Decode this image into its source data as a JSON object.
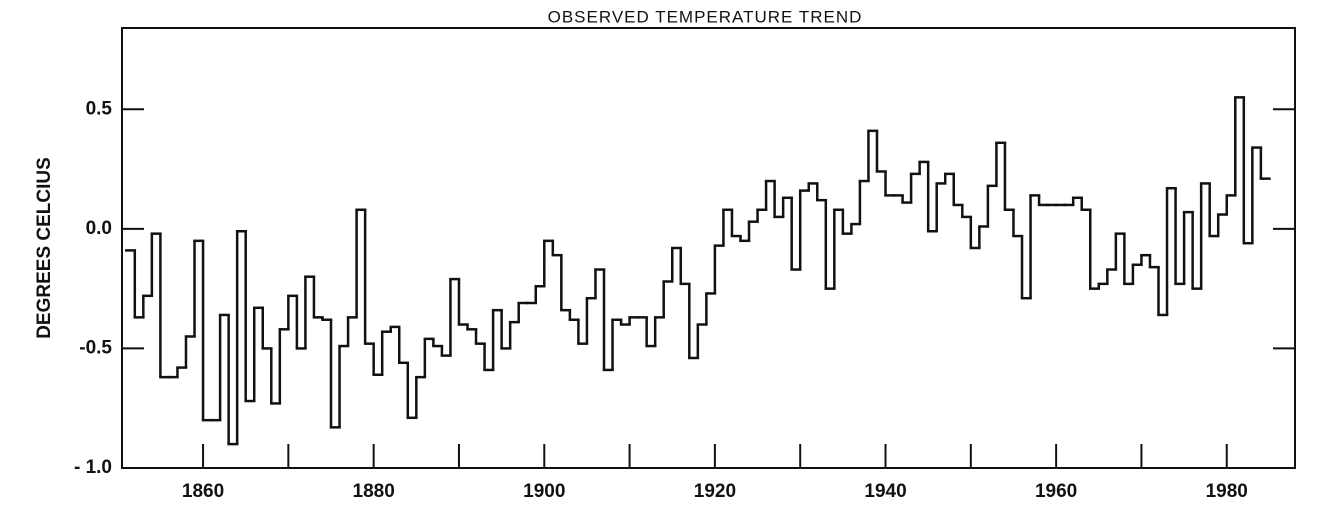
{
  "chart_data": {
    "type": "step",
    "title": "OBSERVED TEMPERATURE TREND",
    "y_label": "DEGREES CELCIUS",
    "x": [
      1851,
      1852,
      1853,
      1854,
      1855,
      1856,
      1857,
      1858,
      1859,
      1860,
      1861,
      1862,
      1863,
      1864,
      1865,
      1866,
      1867,
      1868,
      1869,
      1870,
      1871,
      1872,
      1873,
      1874,
      1875,
      1876,
      1877,
      1878,
      1879,
      1880,
      1881,
      1882,
      1883,
      1884,
      1885,
      1886,
      1887,
      1888,
      1889,
      1890,
      1891,
      1892,
      1893,
      1894,
      1895,
      1896,
      1897,
      1898,
      1899,
      1900,
      1901,
      1902,
      1903,
      1904,
      1905,
      1906,
      1907,
      1908,
      1909,
      1910,
      1911,
      1912,
      1913,
      1914,
      1915,
      1916,
      1917,
      1918,
      1919,
      1920,
      1921,
      1922,
      1923,
      1924,
      1925,
      1926,
      1927,
      1928,
      1929,
      1930,
      1931,
      1932,
      1933,
      1934,
      1935,
      1936,
      1937,
      1938,
      1939,
      1940,
      1941,
      1942,
      1943,
      1944,
      1945,
      1946,
      1947,
      1948,
      1949,
      1950,
      1951,
      1952,
      1953,
      1954,
      1955,
      1956,
      1957,
      1958,
      1959,
      1960,
      1961,
      1962,
      1963,
      1964,
      1965,
      1966,
      1967,
      1968,
      1969,
      1970,
      1971,
      1972,
      1973,
      1974,
      1975,
      1976,
      1977,
      1978,
      1979,
      1980,
      1981,
      1982,
      1983,
      1984
    ],
    "values": [
      -0.09,
      -0.37,
      -0.28,
      -0.02,
      -0.62,
      -0.62,
      -0.58,
      -0.45,
      -0.05,
      -0.8,
      -0.8,
      -0.36,
      -0.9,
      -0.01,
      -0.72,
      -0.33,
      -0.5,
      -0.73,
      -0.42,
      -0.28,
      -0.5,
      -0.2,
      -0.37,
      -0.38,
      -0.83,
      -0.49,
      -0.37,
      0.08,
      -0.48,
      -0.61,
      -0.43,
      -0.41,
      -0.56,
      -0.79,
      -0.62,
      -0.46,
      -0.49,
      -0.53,
      -0.21,
      -0.4,
      -0.42,
      -0.48,
      -0.59,
      -0.34,
      -0.5,
      -0.39,
      -0.31,
      -0.31,
      -0.24,
      -0.05,
      -0.11,
      -0.34,
      -0.38,
      -0.48,
      -0.29,
      -0.17,
      -0.59,
      -0.38,
      -0.4,
      -0.37,
      -0.37,
      -0.49,
      -0.37,
      -0.22,
      -0.08,
      -0.23,
      -0.54,
      -0.4,
      -0.27,
      -0.07,
      0.08,
      -0.03,
      -0.05,
      0.03,
      0.08,
      0.2,
      0.05,
      0.13,
      -0.17,
      0.16,
      0.19,
      0.12,
      -0.25,
      0.08,
      -0.02,
      0.02,
      0.2,
      0.41,
      0.24,
      0.14,
      0.14,
      0.11,
      0.23,
      0.28,
      -0.01,
      0.19,
      0.23,
      0.1,
      0.05,
      -0.08,
      0.01,
      0.18,
      0.36,
      0.08,
      -0.03,
      -0.29,
      0.14,
      0.1,
      0.1,
      0.1,
      0.1,
      0.13,
      0.08,
      -0.25,
      -0.23,
      -0.17,
      -0.02,
      -0.23,
      -0.15,
      -0.11,
      -0.16,
      -0.36,
      0.17,
      -0.23,
      0.07,
      -0.25,
      0.19,
      -0.03,
      0.06,
      0.14,
      0.55,
      -0.06,
      0.34,
      0.21
    ],
    "color": "#111111",
    "xlim": [
      1850.5,
      1988
    ],
    "xticks": [
      1860,
      1880,
      1900,
      1920,
      1940,
      1960,
      1980
    ],
    "xminor_ticks": [
      1870,
      1890,
      1910,
      1930,
      1950,
      1970
    ],
    "ylim": [
      -1.0,
      0.84
    ],
    "yticks": [
      {
        "value": -1.0,
        "label": "- 1.0"
      },
      {
        "value": -0.5,
        "label": "-0.5"
      },
      {
        "value": 0.0,
        "label": "0.0"
      },
      0.5
    ],
    "grid": false
  }
}
